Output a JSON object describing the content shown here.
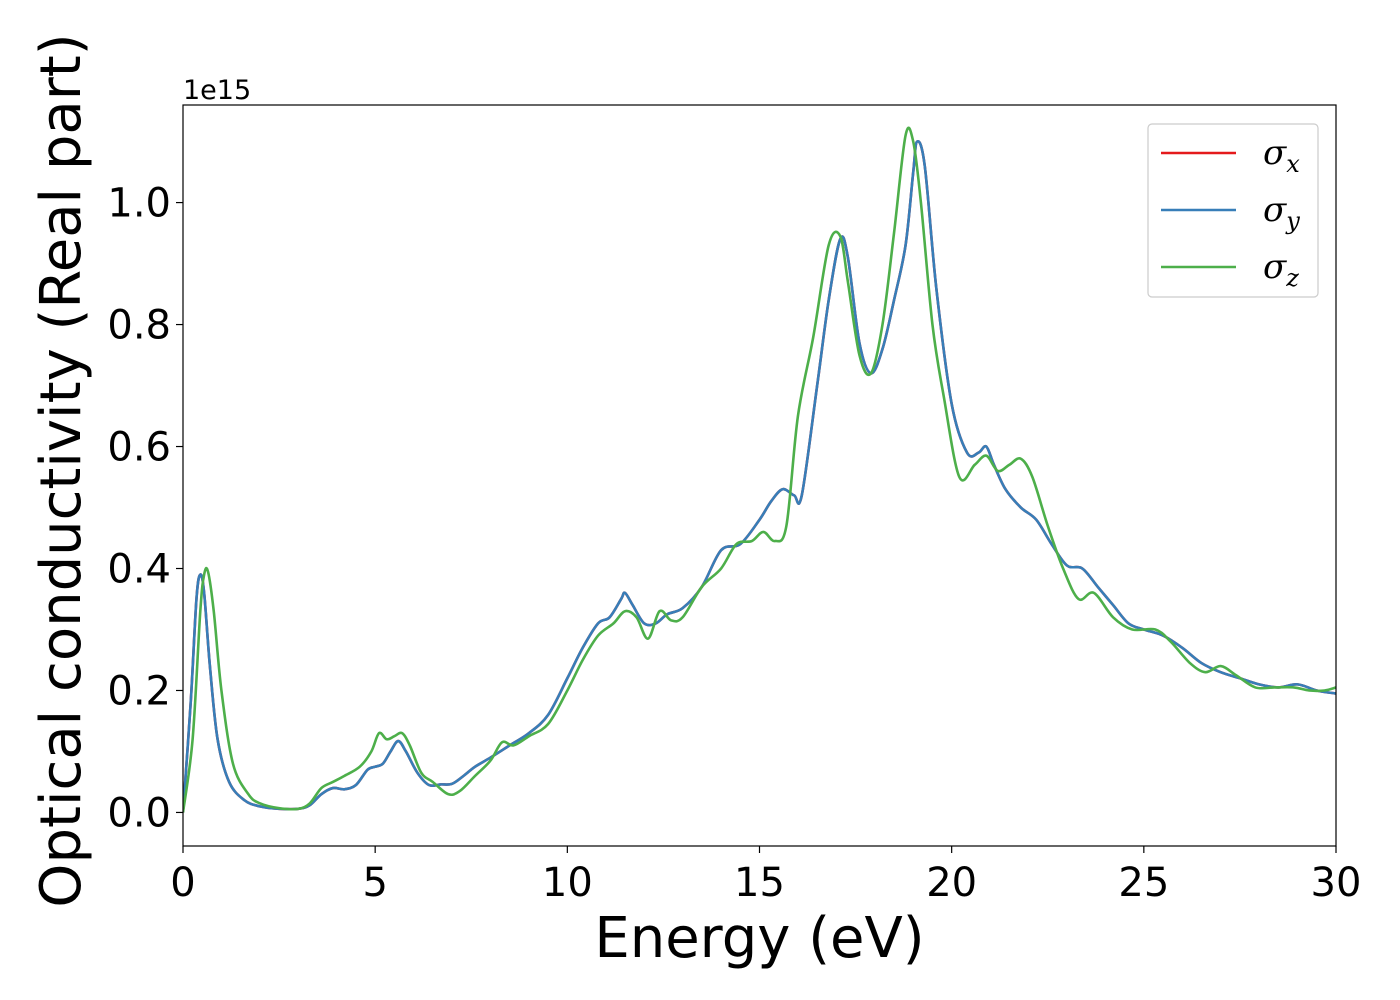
{
  "chart_data": {
    "type": "line",
    "xlabel": "Energy (eV)",
    "ylabel": "Optical conductivity (Real part)",
    "y_offset_text": "1e15",
    "y_scale": 1000000000000000.0,
    "xlim": [
      0,
      30
    ],
    "ylim": [
      -0.055,
      1.16
    ],
    "x_ticks": [
      0,
      5,
      10,
      15,
      20,
      25,
      30
    ],
    "x_tick_labels": [
      "0",
      "5",
      "10",
      "15",
      "20",
      "25",
      "30"
    ],
    "y_ticks": [
      0.0,
      0.2,
      0.4,
      0.6,
      0.8,
      1.0
    ],
    "y_tick_labels": [
      "0.0",
      "0.2",
      "0.4",
      "0.6",
      "0.8",
      "1.0"
    ],
    "grid": false,
    "legend_position": "top-right",
    "series": [
      {
        "name": "σ_x",
        "symbol": "σ",
        "subscript": "x",
        "color": "#e41a1c",
        "x": [
          0,
          0.2,
          0.35,
          0.45,
          0.55,
          0.7,
          0.9,
          1.2,
          1.6,
          2,
          2.5,
          3,
          3.3,
          3.6,
          3.9,
          4.2,
          4.5,
          4.8,
          5.0,
          5.2,
          5.4,
          5.6,
          5.8,
          6.1,
          6.4,
          6.7,
          7,
          7.3,
          7.6,
          8,
          8.5,
          9,
          9.5,
          10,
          10.4,
          10.8,
          11.1,
          11.4,
          11.5,
          11.7,
          12,
          12.3,
          12.6,
          13,
          13.5,
          14,
          14.5,
          15,
          15.3,
          15.6,
          15.9,
          16.1,
          16.5,
          16.8,
          17.1,
          17.3,
          17.6,
          17.9,
          18.2,
          18.5,
          18.8,
          19.0,
          19.1,
          19.3,
          19.6,
          20,
          20.4,
          20.7,
          20.9,
          21.1,
          21.4,
          21.8,
          22.2,
          22.6,
          23,
          23.4,
          23.8,
          24.2,
          24.6,
          25,
          25.5,
          26,
          26.5,
          27,
          27.5,
          28,
          28.5,
          29,
          29.5,
          30
        ],
        "y": [
          0.0,
          0.18,
          0.35,
          0.39,
          0.36,
          0.24,
          0.12,
          0.05,
          0.02,
          0.01,
          0.006,
          0.006,
          0.012,
          0.03,
          0.04,
          0.038,
          0.045,
          0.07,
          0.075,
          0.08,
          0.1,
          0.117,
          0.1,
          0.065,
          0.045,
          0.046,
          0.047,
          0.06,
          0.075,
          0.09,
          0.11,
          0.13,
          0.16,
          0.22,
          0.27,
          0.31,
          0.32,
          0.35,
          0.36,
          0.34,
          0.31,
          0.31,
          0.325,
          0.335,
          0.37,
          0.43,
          0.44,
          0.48,
          0.51,
          0.53,
          0.52,
          0.52,
          0.7,
          0.84,
          0.94,
          0.91,
          0.77,
          0.72,
          0.76,
          0.84,
          0.93,
          1.05,
          1.1,
          1.06,
          0.86,
          0.67,
          0.59,
          0.59,
          0.6,
          0.57,
          0.53,
          0.5,
          0.48,
          0.44,
          0.405,
          0.4,
          0.37,
          0.34,
          0.31,
          0.3,
          0.29,
          0.27,
          0.245,
          0.23,
          0.22,
          0.21,
          0.205,
          0.21,
          0.2,
          0.195
        ]
      },
      {
        "name": "σ_y",
        "symbol": "σ",
        "subscript": "y",
        "color": "#377eb8",
        "x": [
          0,
          0.2,
          0.35,
          0.45,
          0.55,
          0.7,
          0.9,
          1.2,
          1.6,
          2,
          2.5,
          3,
          3.3,
          3.6,
          3.9,
          4.2,
          4.5,
          4.8,
          5.0,
          5.2,
          5.4,
          5.6,
          5.8,
          6.1,
          6.4,
          6.7,
          7,
          7.3,
          7.6,
          8,
          8.5,
          9,
          9.5,
          10,
          10.4,
          10.8,
          11.1,
          11.4,
          11.5,
          11.7,
          12,
          12.3,
          12.6,
          13,
          13.5,
          14,
          14.5,
          15,
          15.3,
          15.6,
          15.9,
          16.1,
          16.5,
          16.8,
          17.1,
          17.3,
          17.6,
          17.9,
          18.2,
          18.5,
          18.8,
          19.0,
          19.1,
          19.3,
          19.6,
          20,
          20.4,
          20.7,
          20.9,
          21.1,
          21.4,
          21.8,
          22.2,
          22.6,
          23,
          23.4,
          23.8,
          24.2,
          24.6,
          25,
          25.5,
          26,
          26.5,
          27,
          27.5,
          28,
          28.5,
          29,
          29.5,
          30
        ],
        "y": [
          0.0,
          0.18,
          0.35,
          0.39,
          0.36,
          0.24,
          0.12,
          0.05,
          0.02,
          0.01,
          0.006,
          0.006,
          0.012,
          0.03,
          0.04,
          0.038,
          0.045,
          0.07,
          0.075,
          0.08,
          0.1,
          0.117,
          0.1,
          0.065,
          0.045,
          0.046,
          0.047,
          0.06,
          0.075,
          0.09,
          0.11,
          0.13,
          0.16,
          0.22,
          0.27,
          0.31,
          0.32,
          0.35,
          0.36,
          0.34,
          0.31,
          0.31,
          0.325,
          0.335,
          0.37,
          0.43,
          0.44,
          0.48,
          0.51,
          0.53,
          0.52,
          0.52,
          0.7,
          0.84,
          0.94,
          0.91,
          0.77,
          0.72,
          0.76,
          0.84,
          0.93,
          1.05,
          1.1,
          1.06,
          0.86,
          0.67,
          0.59,
          0.59,
          0.6,
          0.57,
          0.53,
          0.5,
          0.48,
          0.44,
          0.405,
          0.4,
          0.37,
          0.34,
          0.31,
          0.3,
          0.29,
          0.27,
          0.245,
          0.23,
          0.22,
          0.21,
          0.205,
          0.21,
          0.2,
          0.195
        ]
      },
      {
        "name": "σ_z",
        "symbol": "σ",
        "subscript": "z",
        "color": "#4daf4a",
        "x": [
          0,
          0.25,
          0.45,
          0.55,
          0.65,
          0.8,
          1.0,
          1.3,
          1.7,
          2,
          2.5,
          3,
          3.3,
          3.6,
          3.9,
          4.2,
          4.6,
          4.9,
          5.1,
          5.3,
          5.5,
          5.7,
          5.9,
          6.2,
          6.5,
          6.9,
          7.2,
          7.6,
          8,
          8.3,
          8.6,
          9,
          9.5,
          10,
          10.4,
          10.8,
          11.2,
          11.5,
          11.8,
          12.1,
          12.4,
          12.7,
          13,
          13.5,
          14,
          14.4,
          14.8,
          15.1,
          15.4,
          15.7,
          16,
          16.4,
          16.8,
          17.1,
          17.3,
          17.6,
          17.9,
          18.2,
          18.5,
          18.8,
          19.0,
          19.2,
          19.5,
          19.8,
          20.2,
          20.6,
          20.9,
          21.2,
          21.5,
          21.8,
          22.1,
          22.5,
          22.9,
          23.3,
          23.7,
          24.2,
          24.7,
          25.3,
          25.7,
          26.2,
          26.6,
          27,
          27.4,
          27.9,
          28.4,
          28.9,
          29.3,
          29.7,
          30
        ],
        "y": [
          0.0,
          0.12,
          0.33,
          0.39,
          0.395,
          0.33,
          0.2,
          0.08,
          0.03,
          0.015,
          0.007,
          0.006,
          0.015,
          0.04,
          0.05,
          0.06,
          0.075,
          0.1,
          0.13,
          0.12,
          0.125,
          0.13,
          0.11,
          0.065,
          0.05,
          0.03,
          0.035,
          0.06,
          0.085,
          0.115,
          0.11,
          0.125,
          0.145,
          0.2,
          0.25,
          0.29,
          0.31,
          0.33,
          0.32,
          0.285,
          0.33,
          0.315,
          0.32,
          0.37,
          0.4,
          0.44,
          0.445,
          0.46,
          0.445,
          0.47,
          0.65,
          0.78,
          0.93,
          0.945,
          0.87,
          0.75,
          0.72,
          0.8,
          0.95,
          1.11,
          1.1,
          1.0,
          0.8,
          0.68,
          0.55,
          0.57,
          0.585,
          0.56,
          0.57,
          0.58,
          0.55,
          0.47,
          0.4,
          0.35,
          0.36,
          0.32,
          0.3,
          0.3,
          0.28,
          0.245,
          0.23,
          0.24,
          0.225,
          0.205,
          0.205,
          0.205,
          0.2,
          0.2,
          0.205
        ]
      }
    ]
  }
}
